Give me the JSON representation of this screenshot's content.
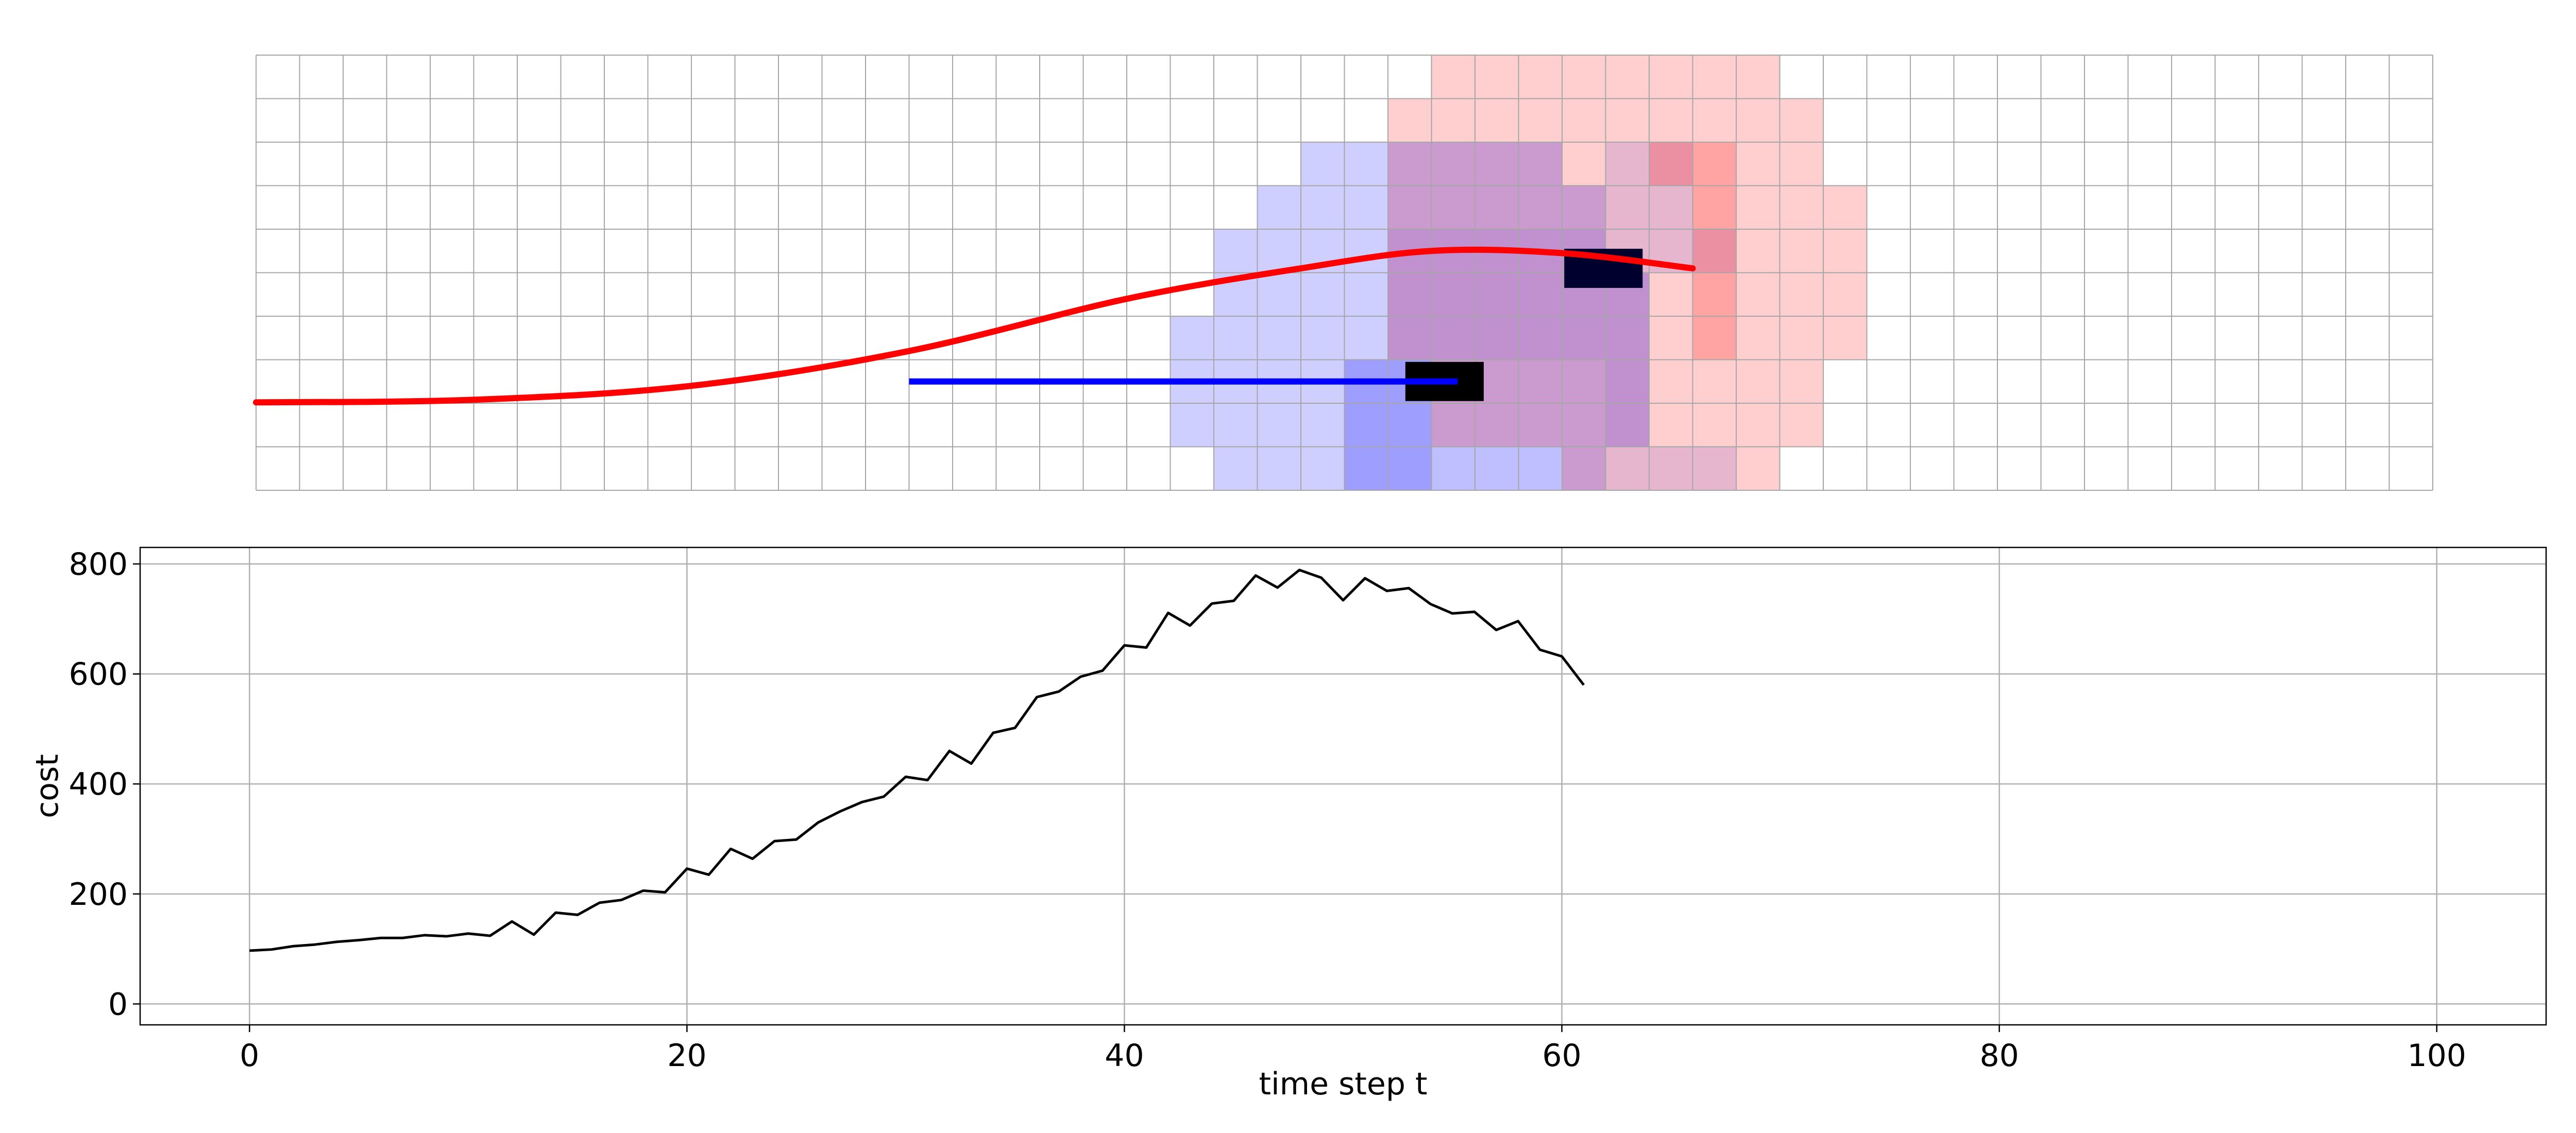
{
  "chart_data": [
    {
      "type": "heatmap",
      "grid": {
        "cols": 50,
        "rows": 10,
        "gridlines": true
      },
      "colors": {
        "gridline": "#a6a6a6",
        "blue_cell": "#0000ff",
        "red_cell": "#ff0000",
        "ego_vehicle": "#000000",
        "other_vehicle": "#00002e",
        "red_trajectory": "#ff0000",
        "blue_trajectory": "#0000ff"
      },
      "blue_layers": [
        {
          "opacity": 0.19,
          "cells": [
            [
              24,
              2
            ],
            [
              25,
              2
            ],
            [
              23,
              3
            ],
            [
              24,
              3
            ],
            [
              25,
              3
            ],
            [
              22,
              4
            ],
            [
              23,
              4
            ],
            [
              24,
              4
            ],
            [
              25,
              4
            ],
            [
              22,
              5
            ],
            [
              23,
              5
            ],
            [
              24,
              5
            ],
            [
              25,
              5
            ],
            [
              21,
              6
            ],
            [
              22,
              6
            ],
            [
              23,
              6
            ],
            [
              24,
              6
            ],
            [
              25,
              6
            ],
            [
              21,
              7
            ],
            [
              22,
              7
            ],
            [
              23,
              7
            ],
            [
              24,
              7
            ],
            [
              21,
              8
            ],
            [
              22,
              8
            ],
            [
              23,
              8
            ],
            [
              24,
              8
            ],
            [
              22,
              9
            ],
            [
              23,
              9
            ],
            [
              24,
              9
            ]
          ]
        },
        {
          "opacity": 0.38,
          "cells": [
            [
              25,
              7
            ],
            [
              26,
              7
            ],
            [
              25,
              8
            ],
            [
              26,
              8
            ],
            [
              25,
              9
            ],
            [
              26,
              9
            ]
          ]
        },
        {
          "opacity": 0.25,
          "cells": [
            [
              26,
              2
            ],
            [
              27,
              2
            ],
            [
              28,
              2
            ],
            [
              29,
              2
            ],
            [
              26,
              3
            ],
            [
              27,
              3
            ],
            [
              28,
              3
            ],
            [
              29,
              3
            ],
            [
              30,
              3
            ],
            [
              27,
              7
            ],
            [
              28,
              7
            ],
            [
              29,
              7
            ],
            [
              30,
              7
            ],
            [
              27,
              8
            ],
            [
              28,
              8
            ],
            [
              29,
              8
            ],
            [
              30,
              8
            ],
            [
              27,
              9
            ],
            [
              28,
              9
            ],
            [
              29,
              9
            ],
            [
              30,
              9
            ]
          ]
        },
        {
          "opacity": 0.3,
          "cells": [
            [
              26,
              4
            ],
            [
              27,
              4
            ],
            [
              28,
              4
            ],
            [
              29,
              4
            ],
            [
              30,
              4
            ],
            [
              26,
              5
            ],
            [
              27,
              5
            ],
            [
              28,
              5
            ],
            [
              29,
              5
            ],
            [
              30,
              5
            ],
            [
              26,
              6
            ],
            [
              27,
              6
            ],
            [
              28,
              6
            ],
            [
              29,
              6
            ],
            [
              30,
              6
            ],
            [
              31,
              5
            ],
            [
              31,
              6
            ],
            [
              31,
              7
            ],
            [
              31,
              8
            ]
          ]
        },
        {
          "opacity": 0.12,
          "cells": [
            [
              31,
              2
            ],
            [
              32,
              2
            ],
            [
              31,
              3
            ],
            [
              32,
              3
            ],
            [
              31,
              4
            ],
            [
              32,
              4
            ],
            [
              33,
              4
            ],
            [
              31,
              9
            ],
            [
              32,
              9
            ],
            [
              33,
              9
            ]
          ]
        }
      ],
      "red_layers": [
        {
          "opacity": 0.19,
          "cells": [
            [
              27,
              0
            ],
            [
              28,
              0
            ],
            [
              29,
              0
            ],
            [
              30,
              0
            ],
            [
              31,
              0
            ],
            [
              32,
              0
            ],
            [
              33,
              0
            ],
            [
              34,
              0
            ],
            [
              26,
              1
            ],
            [
              27,
              1
            ],
            [
              28,
              1
            ],
            [
              29,
              1
            ],
            [
              30,
              1
            ],
            [
              31,
              1
            ],
            [
              32,
              1
            ],
            [
              33,
              1
            ],
            [
              34,
              1
            ],
            [
              35,
              1
            ],
            [
              26,
              2
            ],
            [
              27,
              2
            ],
            [
              28,
              2
            ],
            [
              29,
              2
            ],
            [
              30,
              2
            ],
            [
              31,
              2
            ],
            [
              34,
              2
            ],
            [
              35,
              2
            ],
            [
              26,
              3
            ],
            [
              27,
              3
            ],
            [
              28,
              3
            ],
            [
              29,
              3
            ],
            [
              30,
              3
            ],
            [
              31,
              3
            ],
            [
              32,
              3
            ],
            [
              34,
              3
            ],
            [
              35,
              3
            ],
            [
              36,
              3
            ],
            [
              26,
              4
            ],
            [
              27,
              4
            ],
            [
              28,
              4
            ],
            [
              29,
              4
            ],
            [
              30,
              4
            ],
            [
              31,
              4
            ],
            [
              32,
              4
            ],
            [
              34,
              4
            ],
            [
              35,
              4
            ],
            [
              36,
              4
            ],
            [
              26,
              5
            ],
            [
              27,
              5
            ],
            [
              28,
              5
            ],
            [
              29,
              5
            ],
            [
              30,
              5
            ],
            [
              31,
              5
            ],
            [
              32,
              5
            ],
            [
              34,
              5
            ],
            [
              35,
              5
            ],
            [
              36,
              5
            ],
            [
              26,
              6
            ],
            [
              27,
              6
            ],
            [
              28,
              6
            ],
            [
              29,
              6
            ],
            [
              30,
              6
            ],
            [
              31,
              6
            ],
            [
              32,
              6
            ],
            [
              34,
              6
            ],
            [
              35,
              6
            ],
            [
              36,
              6
            ],
            [
              27,
              7
            ],
            [
              28,
              7
            ],
            [
              29,
              7
            ],
            [
              30,
              7
            ],
            [
              31,
              7
            ],
            [
              32,
              7
            ],
            [
              33,
              7
            ],
            [
              34,
              7
            ],
            [
              35,
              7
            ],
            [
              27,
              8
            ],
            [
              28,
              8
            ],
            [
              29,
              8
            ],
            [
              30,
              8
            ],
            [
              31,
              8
            ],
            [
              32,
              8
            ],
            [
              33,
              8
            ],
            [
              34,
              8
            ],
            [
              35,
              8
            ],
            [
              30,
              9
            ],
            [
              31,
              9
            ],
            [
              32,
              9
            ],
            [
              33,
              9
            ],
            [
              34,
              9
            ]
          ]
        },
        {
          "opacity": 0.36,
          "cells": [
            [
              32,
              2
            ],
            [
              33,
              2
            ],
            [
              33,
              3
            ],
            [
              33,
              4
            ],
            [
              33,
              5
            ],
            [
              33,
              6
            ]
          ]
        }
      ],
      "ego_vehicle": {
        "x": [
          26.4,
          28.2
        ],
        "y": [
          7.05,
          7.95
        ]
      },
      "other_vehicle": {
        "x": [
          30.05,
          31.85
        ],
        "y": [
          4.45,
          5.35
        ]
      },
      "red_trajectory": [
        [
          0,
          7.98
        ],
        [
          5,
          7.92
        ],
        [
          10,
          7.6
        ],
        [
          15,
          6.8
        ],
        [
          20,
          5.6
        ],
        [
          24,
          4.9
        ],
        [
          27,
          4.5
        ],
        [
          30,
          4.55
        ],
        [
          33,
          4.9
        ]
      ],
      "blue_trajectory": [
        [
          15,
          7.5
        ],
        [
          27.6,
          7.5
        ]
      ]
    },
    {
      "type": "line",
      "xlabel": "time step t",
      "ylabel": "cost",
      "xlim": [
        -5,
        105
      ],
      "ylim": [
        -38,
        830
      ],
      "xticks": [
        0,
        20,
        40,
        60,
        80,
        100
      ],
      "yticks": [
        0,
        200,
        400,
        600,
        800
      ],
      "grid": true,
      "line_color": "#000000",
      "x": [
        0,
        1,
        2,
        3,
        4,
        5,
        6,
        7,
        8,
        9,
        10,
        11,
        12,
        13,
        14,
        15,
        16,
        17,
        18,
        19,
        20,
        21,
        22,
        23,
        24,
        25,
        26,
        27,
        28,
        29,
        30,
        31,
        32,
        33,
        34,
        35,
        36,
        37,
        38,
        39,
        40,
        41,
        42,
        43,
        44,
        45,
        46,
        47,
        48,
        49,
        50,
        51,
        52,
        53,
        54,
        55,
        56,
        57,
        58,
        59,
        60,
        61
      ],
      "values": [
        97,
        99,
        105,
        108,
        113,
        116,
        120,
        120,
        125,
        123,
        128,
        124,
        150,
        126,
        166,
        162,
        184,
        189,
        206,
        203,
        246,
        235,
        282,
        264,
        296,
        299,
        330,
        350,
        367,
        377,
        413,
        407,
        460,
        437,
        493,
        502,
        558,
        568,
        595,
        606,
        652,
        648,
        711,
        688,
        728,
        733,
        779,
        757,
        789,
        775,
        734,
        774,
        751,
        756,
        727,
        710,
        713,
        680,
        696,
        644,
        632,
        580
      ]
    }
  ]
}
